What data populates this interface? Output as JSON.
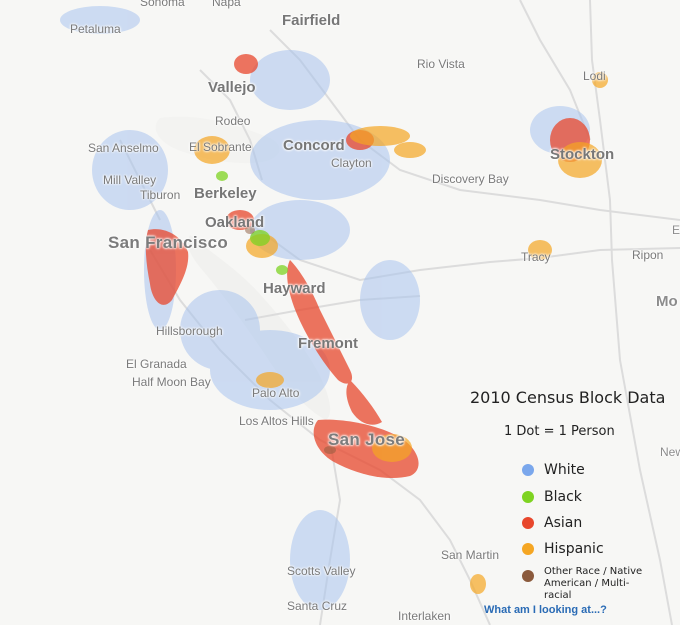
{
  "cities": [
    {
      "id": "sonoma",
      "name": "Sonoma"
    },
    {
      "id": "napa",
      "name": "Napa"
    },
    {
      "id": "petaluma",
      "name": "Petaluma"
    },
    {
      "id": "fairfield",
      "name": "Fairfield"
    },
    {
      "id": "rio-vista",
      "name": "Rio Vista"
    },
    {
      "id": "lodi",
      "name": "Lodi"
    },
    {
      "id": "vallejo",
      "name": "Vallejo"
    },
    {
      "id": "rodeo",
      "name": "Rodeo"
    },
    {
      "id": "san-anselmo",
      "name": "San Anselmo"
    },
    {
      "id": "el-sobrante",
      "name": "El Sobrante"
    },
    {
      "id": "concord",
      "name": "Concord"
    },
    {
      "id": "clayton",
      "name": "Clayton"
    },
    {
      "id": "stockton",
      "name": "Stockton"
    },
    {
      "id": "mill-valley",
      "name": "Mill Valley"
    },
    {
      "id": "tiburon",
      "name": "Tiburon"
    },
    {
      "id": "discovery-bay",
      "name": "Discovery Bay"
    },
    {
      "id": "berkeley",
      "name": "Berkeley"
    },
    {
      "id": "oakland",
      "name": "Oakland"
    },
    {
      "id": "san-francisco",
      "name": "San Francisco"
    },
    {
      "id": "tracy",
      "name": "Tracy"
    },
    {
      "id": "ripon",
      "name": "Ripon"
    },
    {
      "id": "e-edge",
      "name": "E"
    },
    {
      "id": "mo-edge",
      "name": "Mo"
    },
    {
      "id": "hayward",
      "name": "Hayward"
    },
    {
      "id": "hillsborough",
      "name": "Hillsborough"
    },
    {
      "id": "fremont",
      "name": "Fremont"
    },
    {
      "id": "el-granada",
      "name": "El Granada"
    },
    {
      "id": "half-moon-bay",
      "name": "Half Moon Bay"
    },
    {
      "id": "palo-alto",
      "name": "Palo Alto"
    },
    {
      "id": "los-altos-hills",
      "name": "Los Altos Hills"
    },
    {
      "id": "san-jose",
      "name": "San Jose"
    },
    {
      "id": "new-edge",
      "name": "New"
    },
    {
      "id": "san-martin",
      "name": "San Martin"
    },
    {
      "id": "scotts-valley",
      "name": "Scotts Valley"
    },
    {
      "id": "santa-cruz",
      "name": "Santa Cruz"
    },
    {
      "id": "interlaken",
      "name": "Interlaken"
    }
  ],
  "legend": {
    "title": "2010 Census Block Data",
    "subtitle": "1 Dot = 1 Person",
    "items": [
      {
        "label": "White",
        "color": "#7aa7ec"
      },
      {
        "label": "Black",
        "color": "#7ed321"
      },
      {
        "label": "Asian",
        "color": "#e8472c"
      },
      {
        "label": "Hispanic",
        "color": "#f5a623"
      },
      {
        "label": "Other Race / Native American / Multi-racial",
        "color": "#8b5a3c"
      }
    ]
  },
  "help_link": "What am I looking at...?"
}
